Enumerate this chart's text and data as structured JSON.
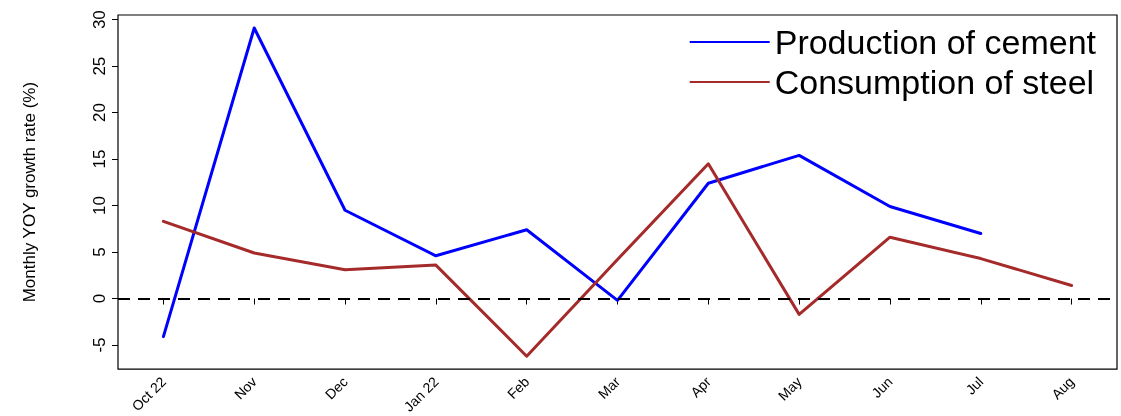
{
  "chart_data": {
    "type": "line",
    "ylabel": "Monthly YOY growth rate (%)",
    "categories": [
      "Oct 22",
      "Nov",
      "Dec",
      "Jan 22",
      "Feb",
      "Mar",
      "Apr",
      "May",
      "Jun",
      "Jul",
      "Aug"
    ],
    "series": [
      {
        "name": "Production of cement",
        "color": "#0000ff",
        "values": [
          -4.1,
          29.1,
          9.5,
          4.6,
          7.4,
          -0.2,
          12.4,
          15.4,
          9.9,
          7.0,
          null
        ]
      },
      {
        "name": "Consumption of steel",
        "color": "#a52a2a",
        "values": [
          8.3,
          4.9,
          3.1,
          3.6,
          -6.2,
          4.2,
          14.5,
          -1.7,
          6.6,
          4.3,
          1.4
        ]
      }
    ],
    "ylim": [
      -7.6,
      30.5
    ],
    "yticks": [
      -5,
      0,
      5,
      10,
      15,
      20,
      25,
      30
    ],
    "ref_lines": [
      {
        "axis": "y",
        "value": 0,
        "color": "#000000",
        "line_style": "dashed"
      }
    ],
    "legend": "top right",
    "marker": "none",
    "line_style": "solid"
  }
}
